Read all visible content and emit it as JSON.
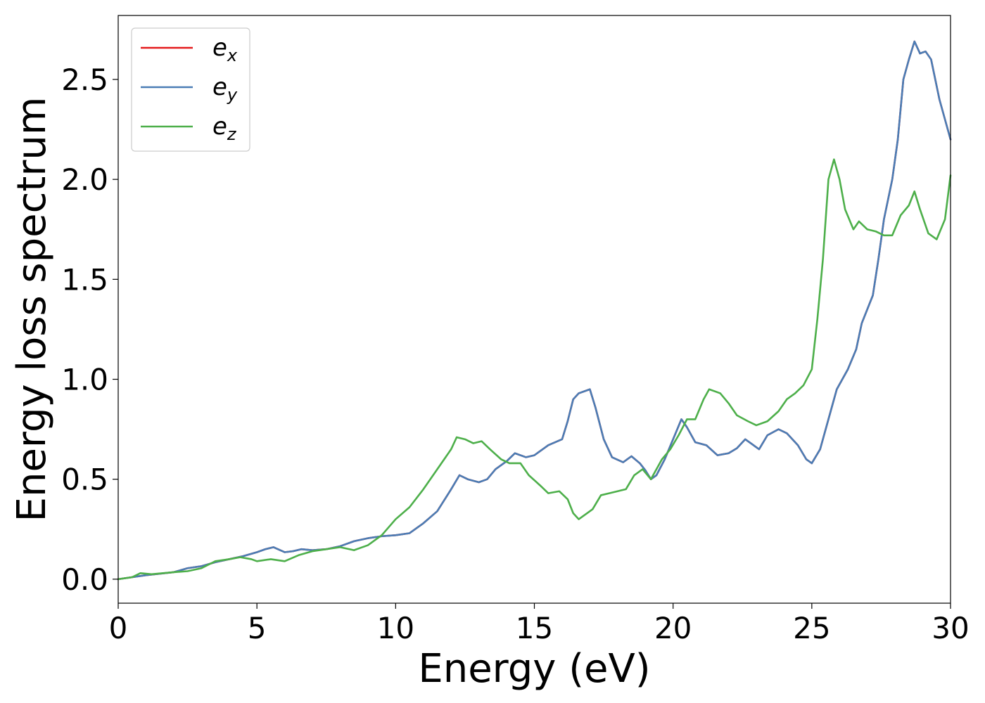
{
  "chart_data": {
    "type": "line",
    "xlabel": "Energy (eV)",
    "ylabel": "Energy loss spectrum",
    "xlim": [
      0,
      30
    ],
    "ylim": [
      -0.12,
      2.82
    ],
    "xticks": [
      0,
      5,
      10,
      15,
      20,
      25,
      30
    ],
    "xtick_labels": [
      "0",
      "5",
      "10",
      "15",
      "20",
      "25",
      "30"
    ],
    "yticks": [
      0.0,
      0.5,
      1.0,
      1.5,
      2.0,
      2.5
    ],
    "ytick_labels": [
      "0.0",
      "0.5",
      "1.0",
      "1.5",
      "2.0",
      "2.5"
    ],
    "grid": false,
    "legend_position": "top-left",
    "series": [
      {
        "name": "e_x",
        "legend_base": "e",
        "legend_sub": "x",
        "color": "#e41a1c",
        "points": [
          [
            0,
            0
          ],
          [
            1,
            0.02
          ],
          [
            2,
            0.035
          ],
          [
            2.5,
            0.055
          ],
          [
            3,
            0.065
          ],
          [
            3.5,
            0.085
          ],
          [
            4,
            0.1
          ],
          [
            4.5,
            0.115
          ],
          [
            5,
            0.135
          ],
          [
            5.3,
            0.15
          ],
          [
            5.6,
            0.16
          ],
          [
            6,
            0.135
          ],
          [
            6.3,
            0.14
          ],
          [
            6.6,
            0.15
          ],
          [
            7,
            0.145
          ],
          [
            7.5,
            0.15
          ],
          [
            8,
            0.165
          ],
          [
            8.5,
            0.19
          ],
          [
            9,
            0.205
          ],
          [
            9.5,
            0.215
          ],
          [
            10,
            0.22
          ],
          [
            10.5,
            0.23
          ],
          [
            11,
            0.28
          ],
          [
            11.5,
            0.34
          ],
          [
            12,
            0.45
          ],
          [
            12.3,
            0.52
          ],
          [
            12.6,
            0.5
          ],
          [
            13,
            0.485
          ],
          [
            13.3,
            0.5
          ],
          [
            13.6,
            0.55
          ],
          [
            14,
            0.59
          ],
          [
            14.3,
            0.63
          ],
          [
            14.7,
            0.61
          ],
          [
            15,
            0.62
          ],
          [
            15.5,
            0.67
          ],
          [
            16,
            0.7
          ],
          [
            16.2,
            0.79
          ],
          [
            16.4,
            0.9
          ],
          [
            16.6,
            0.93
          ],
          [
            16.8,
            0.94
          ],
          [
            17,
            0.95
          ],
          [
            17.2,
            0.86
          ],
          [
            17.5,
            0.7
          ],
          [
            17.8,
            0.61
          ],
          [
            18.2,
            0.585
          ],
          [
            18.5,
            0.615
          ],
          [
            18.8,
            0.58
          ],
          [
            19,
            0.545
          ],
          [
            19.2,
            0.5
          ],
          [
            19.4,
            0.52
          ],
          [
            19.7,
            0.6
          ],
          [
            20,
            0.7
          ],
          [
            20.3,
            0.8
          ],
          [
            20.5,
            0.76
          ],
          [
            20.8,
            0.685
          ],
          [
            21.2,
            0.67
          ],
          [
            21.6,
            0.62
          ],
          [
            22,
            0.63
          ],
          [
            22.3,
            0.655
          ],
          [
            22.6,
            0.7
          ],
          [
            22.9,
            0.67
          ],
          [
            23.1,
            0.65
          ],
          [
            23.4,
            0.72
          ],
          [
            23.8,
            0.75
          ],
          [
            24.1,
            0.73
          ],
          [
            24.5,
            0.67
          ],
          [
            24.8,
            0.6
          ],
          [
            25,
            0.58
          ],
          [
            25.3,
            0.65
          ],
          [
            25.6,
            0.8
          ],
          [
            25.9,
            0.95
          ],
          [
            26.3,
            1.05
          ],
          [
            26.6,
            1.15
          ],
          [
            26.8,
            1.28
          ],
          [
            27,
            1.35
          ],
          [
            27.2,
            1.42
          ],
          [
            27.4,
            1.6
          ],
          [
            27.6,
            1.8
          ],
          [
            27.9,
            2.0
          ],
          [
            28.1,
            2.2
          ],
          [
            28.3,
            2.5
          ],
          [
            28.5,
            2.6
          ],
          [
            28.7,
            2.69
          ],
          [
            28.9,
            2.63
          ],
          [
            29.1,
            2.64
          ],
          [
            29.3,
            2.6
          ],
          [
            29.6,
            2.4
          ],
          [
            30,
            2.2
          ]
        ]
      },
      {
        "name": "e_y",
        "legend_base": "e",
        "legend_sub": "y",
        "color": "#4a7db5",
        "points": [
          [
            0,
            0
          ],
          [
            1,
            0.02
          ],
          [
            2,
            0.035
          ],
          [
            2.5,
            0.055
          ],
          [
            3,
            0.065
          ],
          [
            3.5,
            0.085
          ],
          [
            4,
            0.1
          ],
          [
            4.5,
            0.115
          ],
          [
            5,
            0.135
          ],
          [
            5.3,
            0.15
          ],
          [
            5.6,
            0.16
          ],
          [
            6,
            0.135
          ],
          [
            6.3,
            0.14
          ],
          [
            6.6,
            0.15
          ],
          [
            7,
            0.145
          ],
          [
            7.5,
            0.15
          ],
          [
            8,
            0.165
          ],
          [
            8.5,
            0.19
          ],
          [
            9,
            0.205
          ],
          [
            9.5,
            0.215
          ],
          [
            10,
            0.22
          ],
          [
            10.5,
            0.23
          ],
          [
            11,
            0.28
          ],
          [
            11.5,
            0.34
          ],
          [
            12,
            0.45
          ],
          [
            12.3,
            0.52
          ],
          [
            12.6,
            0.5
          ],
          [
            13,
            0.485
          ],
          [
            13.3,
            0.5
          ],
          [
            13.6,
            0.55
          ],
          [
            14,
            0.59
          ],
          [
            14.3,
            0.63
          ],
          [
            14.7,
            0.61
          ],
          [
            15,
            0.62
          ],
          [
            15.5,
            0.67
          ],
          [
            16,
            0.7
          ],
          [
            16.2,
            0.79
          ],
          [
            16.4,
            0.9
          ],
          [
            16.6,
            0.93
          ],
          [
            16.8,
            0.94
          ],
          [
            17,
            0.95
          ],
          [
            17.2,
            0.86
          ],
          [
            17.5,
            0.7
          ],
          [
            17.8,
            0.61
          ],
          [
            18.2,
            0.585
          ],
          [
            18.5,
            0.615
          ],
          [
            18.8,
            0.58
          ],
          [
            19,
            0.545
          ],
          [
            19.2,
            0.5
          ],
          [
            19.4,
            0.52
          ],
          [
            19.7,
            0.6
          ],
          [
            20,
            0.7
          ],
          [
            20.3,
            0.8
          ],
          [
            20.5,
            0.76
          ],
          [
            20.8,
            0.685
          ],
          [
            21.2,
            0.67
          ],
          [
            21.6,
            0.62
          ],
          [
            22,
            0.63
          ],
          [
            22.3,
            0.655
          ],
          [
            22.6,
            0.7
          ],
          [
            22.9,
            0.67
          ],
          [
            23.1,
            0.65
          ],
          [
            23.4,
            0.72
          ],
          [
            23.8,
            0.75
          ],
          [
            24.1,
            0.73
          ],
          [
            24.5,
            0.67
          ],
          [
            24.8,
            0.6
          ],
          [
            25,
            0.58
          ],
          [
            25.3,
            0.65
          ],
          [
            25.6,
            0.8
          ],
          [
            25.9,
            0.95
          ],
          [
            26.3,
            1.05
          ],
          [
            26.6,
            1.15
          ],
          [
            26.8,
            1.28
          ],
          [
            27,
            1.35
          ],
          [
            27.2,
            1.42
          ],
          [
            27.4,
            1.6
          ],
          [
            27.6,
            1.8
          ],
          [
            27.9,
            2.0
          ],
          [
            28.1,
            2.2
          ],
          [
            28.3,
            2.5
          ],
          [
            28.5,
            2.6
          ],
          [
            28.7,
            2.69
          ],
          [
            28.9,
            2.63
          ],
          [
            29.1,
            2.64
          ],
          [
            29.3,
            2.6
          ],
          [
            29.6,
            2.4
          ],
          [
            30,
            2.2
          ]
        ]
      },
      {
        "name": "e_z",
        "legend_base": "e",
        "legend_sub": "z",
        "color": "#4daf4a",
        "points": [
          [
            0,
            0
          ],
          [
            0.5,
            0.01
          ],
          [
            0.8,
            0.03
          ],
          [
            1.2,
            0.025
          ],
          [
            2,
            0.035
          ],
          [
            2.5,
            0.04
          ],
          [
            3,
            0.055
          ],
          [
            3.5,
            0.09
          ],
          [
            4,
            0.1
          ],
          [
            4.4,
            0.11
          ],
          [
            4.8,
            0.1
          ],
          [
            5,
            0.09
          ],
          [
            5.5,
            0.1
          ],
          [
            6,
            0.09
          ],
          [
            6.5,
            0.12
          ],
          [
            7,
            0.14
          ],
          [
            7.5,
            0.15
          ],
          [
            8,
            0.16
          ],
          [
            8.5,
            0.145
          ],
          [
            9,
            0.17
          ],
          [
            9.5,
            0.22
          ],
          [
            10,
            0.3
          ],
          [
            10.5,
            0.36
          ],
          [
            11,
            0.45
          ],
          [
            11.5,
            0.55
          ],
          [
            12,
            0.65
          ],
          [
            12.2,
            0.71
          ],
          [
            12.5,
            0.7
          ],
          [
            12.8,
            0.68
          ],
          [
            13.1,
            0.69
          ],
          [
            13.4,
            0.65
          ],
          [
            13.8,
            0.6
          ],
          [
            14.1,
            0.58
          ],
          [
            14.5,
            0.58
          ],
          [
            14.8,
            0.52
          ],
          [
            15.2,
            0.47
          ],
          [
            15.5,
            0.43
          ],
          [
            15.9,
            0.44
          ],
          [
            16.2,
            0.4
          ],
          [
            16.4,
            0.33
          ],
          [
            16.6,
            0.3
          ],
          [
            16.9,
            0.33
          ],
          [
            17.1,
            0.35
          ],
          [
            17.4,
            0.42
          ],
          [
            17.7,
            0.43
          ],
          [
            18,
            0.44
          ],
          [
            18.3,
            0.45
          ],
          [
            18.6,
            0.52
          ],
          [
            18.9,
            0.55
          ],
          [
            19.2,
            0.5
          ],
          [
            19.6,
            0.6
          ],
          [
            19.9,
            0.65
          ],
          [
            20.2,
            0.72
          ],
          [
            20.5,
            0.8
          ],
          [
            20.8,
            0.8
          ],
          [
            21.1,
            0.9
          ],
          [
            21.3,
            0.95
          ],
          [
            21.7,
            0.93
          ],
          [
            22,
            0.88
          ],
          [
            22.3,
            0.82
          ],
          [
            22.7,
            0.79
          ],
          [
            23,
            0.77
          ],
          [
            23.4,
            0.79
          ],
          [
            23.8,
            0.84
          ],
          [
            24.1,
            0.9
          ],
          [
            24.4,
            0.93
          ],
          [
            24.7,
            0.97
          ],
          [
            25,
            1.05
          ],
          [
            25.2,
            1.3
          ],
          [
            25.4,
            1.6
          ],
          [
            25.6,
            2.0
          ],
          [
            25.8,
            2.1
          ],
          [
            26,
            2.0
          ],
          [
            26.2,
            1.85
          ],
          [
            26.5,
            1.75
          ],
          [
            26.7,
            1.79
          ],
          [
            27,
            1.75
          ],
          [
            27.3,
            1.74
          ],
          [
            27.6,
            1.72
          ],
          [
            27.9,
            1.72
          ],
          [
            28.2,
            1.82
          ],
          [
            28.5,
            1.87
          ],
          [
            28.7,
            1.94
          ],
          [
            28.9,
            1.85
          ],
          [
            29.2,
            1.73
          ],
          [
            29.5,
            1.7
          ],
          [
            29.8,
            1.8
          ],
          [
            30,
            2.02
          ]
        ]
      }
    ]
  }
}
